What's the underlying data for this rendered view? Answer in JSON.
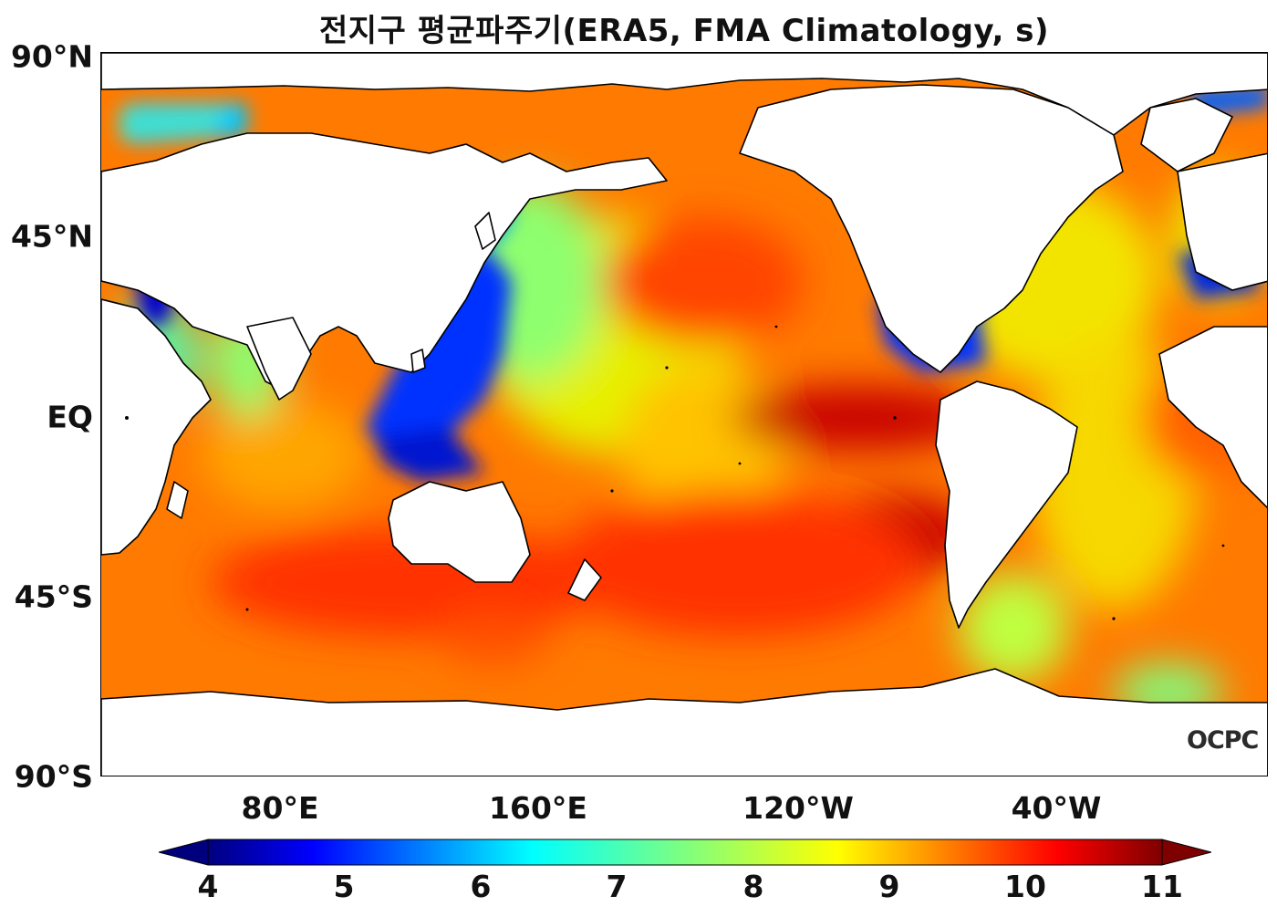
{
  "title": "전지구 평균파주기(ERA5, FMA Climatology, s)",
  "watermark": "OCPC",
  "axes": {
    "y_labels": [
      "90°N",
      "45°N",
      "EQ",
      "45°S",
      "90°S"
    ],
    "x_labels": [
      "80°E",
      "160°E",
      "120°W",
      "40°W"
    ]
  },
  "colorbar": {
    "ticks": [
      "4",
      "5",
      "6",
      "7",
      "8",
      "9",
      "10",
      "11"
    ],
    "colormap": "jet",
    "colors": [
      "#00007f",
      "#0000ff",
      "#007fff",
      "#00ffff",
      "#7fff7f",
      "#ffff00",
      "#ff7f00",
      "#ff0000",
      "#7f0000"
    ],
    "range": [
      4,
      11
    ],
    "extend": "both"
  },
  "colors": {
    "land": "#ffffff",
    "coastline": "#000000",
    "ocean_dominant": "#ff6a00",
    "maximum_region": "#c80000"
  }
}
